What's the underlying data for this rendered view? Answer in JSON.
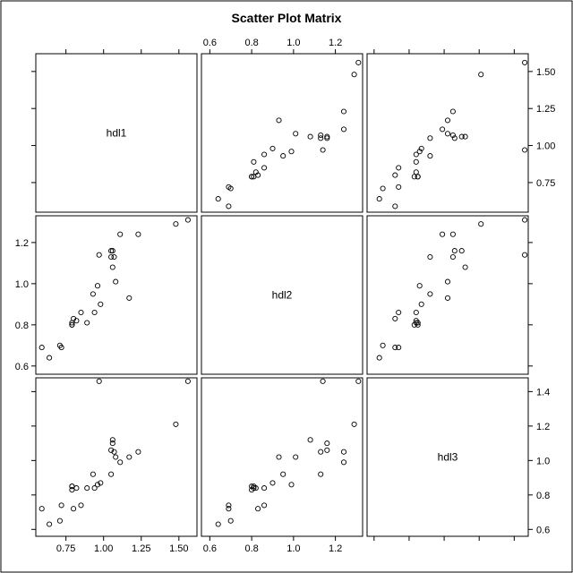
{
  "chart_data": {
    "type": "scatter",
    "title": "Scatter Plot Matrix",
    "variables": [
      "hdl1",
      "hdl2",
      "hdl3"
    ],
    "ranges": {
      "hdl1": [
        0.55,
        1.62
      ],
      "hdl2": [
        0.56,
        1.33
      ],
      "hdl3": [
        0.56,
        1.48
      ]
    },
    "ticks": {
      "hdl1": {
        "values": [
          0.75,
          1.0,
          1.25,
          1.5
        ],
        "labels": [
          "0.75",
          "1.00",
          "1.25",
          "1.50"
        ]
      },
      "hdl2": {
        "values": [
          0.6,
          0.8,
          1.0,
          1.2
        ],
        "labels": [
          "0.6",
          "0.8",
          "1.0",
          "1.2"
        ]
      },
      "hdl3": {
        "values": [
          0.6,
          0.8,
          1.0,
          1.2,
          1.4
        ],
        "labels": [
          "0.6",
          "0.8",
          "1.0",
          "1.2",
          "1.4"
        ]
      }
    },
    "axis_labels": {
      "top": "hdl2",
      "bottom": "hdl1",
      "left": "hdl2",
      "right_upper": "hdl1",
      "right_lower": "hdl3"
    },
    "grid": false,
    "observations": [
      {
        "hdl1": 0.59,
        "hdl2": 0.69,
        "hdl3": 0.72
      },
      {
        "hdl1": 0.64,
        "hdl2": 0.64,
        "hdl3": 0.63
      },
      {
        "hdl1": 0.71,
        "hdl2": 0.7,
        "hdl3": 0.65
      },
      {
        "hdl1": 0.72,
        "hdl2": 0.69,
        "hdl3": 0.74
      },
      {
        "hdl1": 0.79,
        "hdl2": 0.8,
        "hdl3": 0.83
      },
      {
        "hdl1": 0.79,
        "hdl2": 0.81,
        "hdl3": 0.85
      },
      {
        "hdl1": 0.8,
        "hdl2": 0.83,
        "hdl3": 0.72
      },
      {
        "hdl1": 0.79,
        "hdl2": 0.8,
        "hdl3": 0.85
      },
      {
        "hdl1": 0.82,
        "hdl2": 0.82,
        "hdl3": 0.84
      },
      {
        "hdl1": 0.85,
        "hdl2": 0.86,
        "hdl3": 0.74
      },
      {
        "hdl1": 0.89,
        "hdl2": 0.81,
        "hdl3": 0.84
      },
      {
        "hdl1": 0.93,
        "hdl2": 0.95,
        "hdl3": 0.92
      },
      {
        "hdl1": 0.94,
        "hdl2": 0.86,
        "hdl3": 0.84
      },
      {
        "hdl1": 0.96,
        "hdl2": 0.99,
        "hdl3": 0.86
      },
      {
        "hdl1": 0.97,
        "hdl2": 1.14,
        "hdl3": 1.46
      },
      {
        "hdl1": 0.98,
        "hdl2": 0.9,
        "hdl3": 0.87
      },
      {
        "hdl1": 1.05,
        "hdl2": 1.13,
        "hdl3": 0.92
      },
      {
        "hdl1": 1.05,
        "hdl2": 1.16,
        "hdl3": 1.06
      },
      {
        "hdl1": 1.06,
        "hdl2": 1.16,
        "hdl3": 1.1
      },
      {
        "hdl1": 1.06,
        "hdl2": 1.08,
        "hdl3": 1.12
      },
      {
        "hdl1": 1.07,
        "hdl2": 1.13,
        "hdl3": 1.05
      },
      {
        "hdl1": 1.08,
        "hdl2": 1.01,
        "hdl3": 1.02
      },
      {
        "hdl1": 1.11,
        "hdl2": 1.24,
        "hdl3": 0.99
      },
      {
        "hdl1": 1.17,
        "hdl2": 0.93,
        "hdl3": 1.02
      },
      {
        "hdl1": 1.23,
        "hdl2": 1.24,
        "hdl3": 1.05
      },
      {
        "hdl1": 1.48,
        "hdl2": 1.29,
        "hdl3": 1.21
      },
      {
        "hdl1": 1.56,
        "hdl2": 1.31,
        "hdl3": 1.46
      }
    ]
  }
}
